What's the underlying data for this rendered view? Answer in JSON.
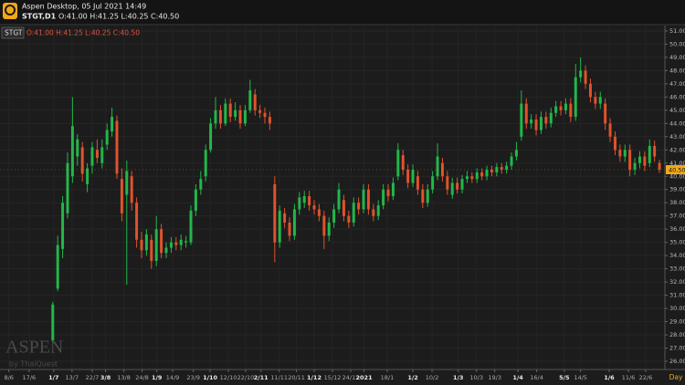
{
  "app": {
    "title": "Aspen Desktop, 05 Jul 2021 14:49",
    "symbol": "STGT,D1",
    "ohlc": "O:41.00 H:41.25 L:40.25 C:40.50"
  },
  "chart_data": {
    "type": "candlestick",
    "symbol_tag": "STGT",
    "ohlc_text": "O:41.00 H:41.25 L:40.25 C:40.50",
    "period": "Day",
    "watermark": "ASPEN",
    "watermark_sub": "by ThaiQuest",
    "up_color": "#21b84a",
    "down_color": "#e0532c",
    "grid": true,
    "last_price": {
      "value": 40.5,
      "label": "40.50"
    },
    "ylim": [
      25.38,
      51.41
    ],
    "xlim": [
      -10.7,
      124.1
    ],
    "yticks": [
      {
        "value": 26,
        "label": "26.00"
      },
      {
        "value": 27,
        "label": "27.00"
      },
      {
        "value": 28,
        "label": "28.00"
      },
      {
        "value": 29,
        "label": "29.00"
      },
      {
        "value": 30,
        "label": "30.00"
      },
      {
        "value": 31,
        "label": "31.00"
      },
      {
        "value": 32,
        "label": "32.00"
      },
      {
        "value": 33,
        "label": "33.00"
      },
      {
        "value": 34,
        "label": "34.00"
      },
      {
        "value": 35,
        "label": "35.00"
      },
      {
        "value": 36,
        "label": "36.00"
      },
      {
        "value": 37,
        "label": "37.00"
      },
      {
        "value": 38,
        "label": "38.00"
      },
      {
        "value": 39,
        "label": "39.00"
      },
      {
        "value": 40,
        "label": "40.00"
      },
      {
        "value": 41,
        "label": "41.00"
      },
      {
        "value": 42,
        "label": "42.00"
      },
      {
        "value": 43,
        "label": "43.00"
      },
      {
        "value": 44,
        "label": "44.00"
      },
      {
        "value": 45,
        "label": "45.00"
      },
      {
        "value": 46,
        "label": "46.00"
      },
      {
        "value": 47,
        "label": "47.00"
      },
      {
        "value": 48,
        "label": "48.00"
      },
      {
        "value": 49,
        "label": "49.00"
      },
      {
        "value": 50,
        "label": "50.00"
      },
      {
        "value": 51,
        "label": "51.00"
      }
    ],
    "xticks": [
      {
        "value": -8.9,
        "label": "8/6"
      },
      {
        "value": -4.8,
        "label": "17/6"
      },
      {
        "value": 0.2,
        "label": "1/7",
        "major": true
      },
      {
        "value": 3.9,
        "label": "13/7"
      },
      {
        "value": 8,
        "label": "22/7"
      },
      {
        "value": 10.7,
        "label": "3/8",
        "major": true
      },
      {
        "value": 14.4,
        "label": "13/8"
      },
      {
        "value": 18.1,
        "label": "24/8"
      },
      {
        "value": 21.1,
        "label": "1/9",
        "major": true
      },
      {
        "value": 24.3,
        "label": "14/9"
      },
      {
        "value": 28.5,
        "label": "23/9"
      },
      {
        "value": 31.9,
        "label": "1/10",
        "major": true
      },
      {
        "value": 35.6,
        "label": "12/10"
      },
      {
        "value": 39.1,
        "label": "22/10"
      },
      {
        "value": 42.2,
        "label": "2/11",
        "major": true
      },
      {
        "value": 45.9,
        "label": "11/11"
      },
      {
        "value": 49.4,
        "label": "20/11"
      },
      {
        "value": 53,
        "label": "1/12",
        "major": true
      },
      {
        "value": 56.7,
        "label": "15/12"
      },
      {
        "value": 60.4,
        "label": "24/12"
      },
      {
        "value": 63.1,
        "label": "2021",
        "major": true
      },
      {
        "value": 67.8,
        "label": "18/1"
      },
      {
        "value": 73,
        "label": "1/2",
        "major": true
      },
      {
        "value": 76.9,
        "label": "10/2"
      },
      {
        "value": 82.2,
        "label": "1/3",
        "major": true
      },
      {
        "value": 85.9,
        "label": "10/3"
      },
      {
        "value": 89.6,
        "label": "19/3"
      },
      {
        "value": 94.3,
        "label": "1/4",
        "major": true
      },
      {
        "value": 98.1,
        "label": "16/4"
      },
      {
        "value": 103.7,
        "label": "5/5",
        "major": true
      },
      {
        "value": 107,
        "label": "14/5"
      },
      {
        "value": 112.8,
        "label": "1/6",
        "major": true
      },
      {
        "value": 116.7,
        "label": "11/6"
      },
      {
        "value": 120.2,
        "label": "22/6"
      }
    ],
    "open": [
      27.6,
      31.5,
      34.5,
      37.2,
      40,
      41.5,
      42.2,
      39.4,
      40.8,
      42,
      41,
      42.4,
      43.4,
      44.2,
      39.8,
      38.6,
      40,
      38,
      35.2,
      34.4,
      35.2,
      33.6,
      36,
      34.2,
      34.6,
      35,
      34.8,
      35,
      35,
      37.4,
      39,
      40,
      42,
      44,
      45,
      44,
      45.5,
      44.5,
      45,
      44,
      45,
      46.2,
      45,
      44.8,
      44.5,
      39.4,
      35,
      37.2,
      36.5,
      35.5,
      37.5,
      38,
      38.5,
      37.8,
      37.5,
      37,
      35.5,
      36.5,
      37.5,
      38.2,
      37,
      36.5,
      38,
      37.5,
      39,
      37.5,
      37,
      37.8,
      39,
      38.5,
      40,
      41.6,
      40.5,
      39.5,
      40,
      39,
      38,
      39,
      40,
      41,
      40,
      38.6,
      39.5,
      39,
      39.8,
      40,
      39.8,
      40.3,
      40,
      40.5,
      40.3,
      40.7,
      40.5,
      40.8,
      41.5,
      43,
      45.5,
      44,
      44.3,
      43.5,
      44.5,
      44,
      44.8,
      45.3,
      45,
      45.5,
      44.5,
      47.5,
      48,
      47,
      46,
      45.5,
      45.5,
      44,
      43,
      42,
      41.5,
      42,
      40.5,
      41,
      41.5,
      41,
      42.3,
      41
    ],
    "high": [
      30.5,
      35.5,
      38.5,
      41.8,
      46,
      43.2,
      42.6,
      41,
      42.6,
      42.8,
      42.8,
      44,
      45.2,
      44.6,
      40.6,
      41.2,
      40.4,
      38.4,
      35.8,
      36,
      35.6,
      37,
      36.4,
      35,
      35.4,
      35.4,
      35.6,
      35.5,
      37.8,
      39.4,
      40.4,
      42.4,
      44.4,
      46,
      45.4,
      45.9,
      45.9,
      45.6,
      45.4,
      45.4,
      47.3,
      46.6,
      45.4,
      45.2,
      44.9,
      40,
      37.8,
      37.6,
      36.9,
      37.9,
      38.8,
      38.9,
      38.9,
      38.2,
      37.9,
      37.4,
      36.9,
      37.9,
      39.5,
      38.6,
      37.4,
      38.4,
      38.4,
      39.4,
      39.4,
      37.9,
      38.2,
      39.4,
      39.4,
      39.9,
      42.5,
      42,
      40.9,
      40.9,
      40.4,
      39.4,
      39.4,
      40.4,
      42.5,
      41.4,
      40.4,
      39.9,
      39.9,
      40.1,
      40.4,
      40.3,
      40.6,
      40.6,
      40.8,
      40.8,
      41,
      41,
      41.1,
      41.8,
      42.6,
      46.5,
      45.9,
      44.7,
      44.7,
      44.9,
      44.9,
      45.2,
      45.7,
      45.7,
      45.9,
      45.9,
      48.5,
      49,
      48.4,
      47.4,
      46.4,
      46.4,
      45.9,
      44.4,
      43.4,
      42.4,
      42.4,
      42.4,
      41.4,
      41.9,
      41.9,
      42.8,
      42.7,
      41.25
    ],
    "low": [
      27.4,
      31.3,
      33.8,
      36.8,
      39.5,
      40.8,
      39.6,
      38.8,
      40.2,
      41,
      40.6,
      42,
      43,
      39.8,
      36.6,
      31.8,
      37.4,
      34.6,
      33.8,
      34,
      33,
      33.2,
      33.8,
      33.8,
      34.2,
      34.4,
      34.4,
      34.6,
      34.8,
      37,
      38.6,
      39.6,
      41.8,
      43.6,
      43.6,
      43.8,
      44.1,
      44.2,
      43.6,
      43.8,
      44.8,
      44.6,
      44.4,
      44,
      43.5,
      33.5,
      34.6,
      36.1,
      35.1,
      35.2,
      37.1,
      37.6,
      37.4,
      37.1,
      36.6,
      34.5,
      35.1,
      36.1,
      37.2,
      36.6,
      36.1,
      36.2,
      37.1,
      37.2,
      37.1,
      36.6,
      36.7,
      37.5,
      38.1,
      38.2,
      39.7,
      40.1,
      39.1,
      39.2,
      38.6,
      37.6,
      37.7,
      38.7,
      39.7,
      39.6,
      38.6,
      38.3,
      38.7,
      38.7,
      39.5,
      39.5,
      39.5,
      39.7,
      39.7,
      40,
      40,
      40.2,
      40.2,
      40.5,
      41.2,
      42.7,
      43.6,
      43.6,
      43.1,
      43.2,
      43.6,
      43.7,
      44.5,
      44.6,
      44.7,
      44.1,
      44.2,
      47.1,
      46.6,
      45.6,
      45.1,
      45.1,
      43.5,
      42.6,
      41.6,
      41.1,
      41.1,
      40,
      40.1,
      40.6,
      40.4,
      40.7,
      41.1,
      40.25
    ],
    "close": [
      30.3,
      34.8,
      38,
      41,
      43.8,
      42.8,
      40.2,
      40.6,
      42.2,
      41.4,
      42.2,
      43.5,
      44.5,
      40.2,
      37.2,
      40.4,
      38,
      35.2,
      34.4,
      35.6,
      33.6,
      36,
      34.2,
      34.6,
      35,
      34.8,
      35.2,
      35.1,
      37.4,
      39,
      39.8,
      42,
      44,
      45,
      44,
      45.5,
      44.5,
      45,
      44,
      45,
      46.5,
      45,
      44.8,
      44.5,
      44,
      35,
      37.4,
      36.5,
      35.5,
      37.5,
      38.4,
      38.5,
      37.8,
      37.5,
      37,
      35.5,
      36.5,
      37.5,
      39,
      37,
      36.5,
      38,
      37.5,
      39,
      37.5,
      37,
      37.8,
      39,
      38.5,
      39.5,
      42,
      40.5,
      39.5,
      40.5,
      39,
      38,
      39,
      40,
      41.5,
      40,
      39,
      39.5,
      39,
      39.8,
      40,
      39.8,
      40.3,
      40,
      40.5,
      40.3,
      40.7,
      40.5,
      40.8,
      41.5,
      42,
      45.5,
      44,
      44.3,
      43.5,
      44.5,
      44,
      44.8,
      45.3,
      45,
      45.5,
      44.5,
      47.5,
      48,
      47,
      46,
      45.5,
      46,
      44,
      43,
      42,
      41.5,
      42,
      40.5,
      41,
      41.5,
      40.8,
      42.3,
      41.5,
      40.5
    ]
  }
}
